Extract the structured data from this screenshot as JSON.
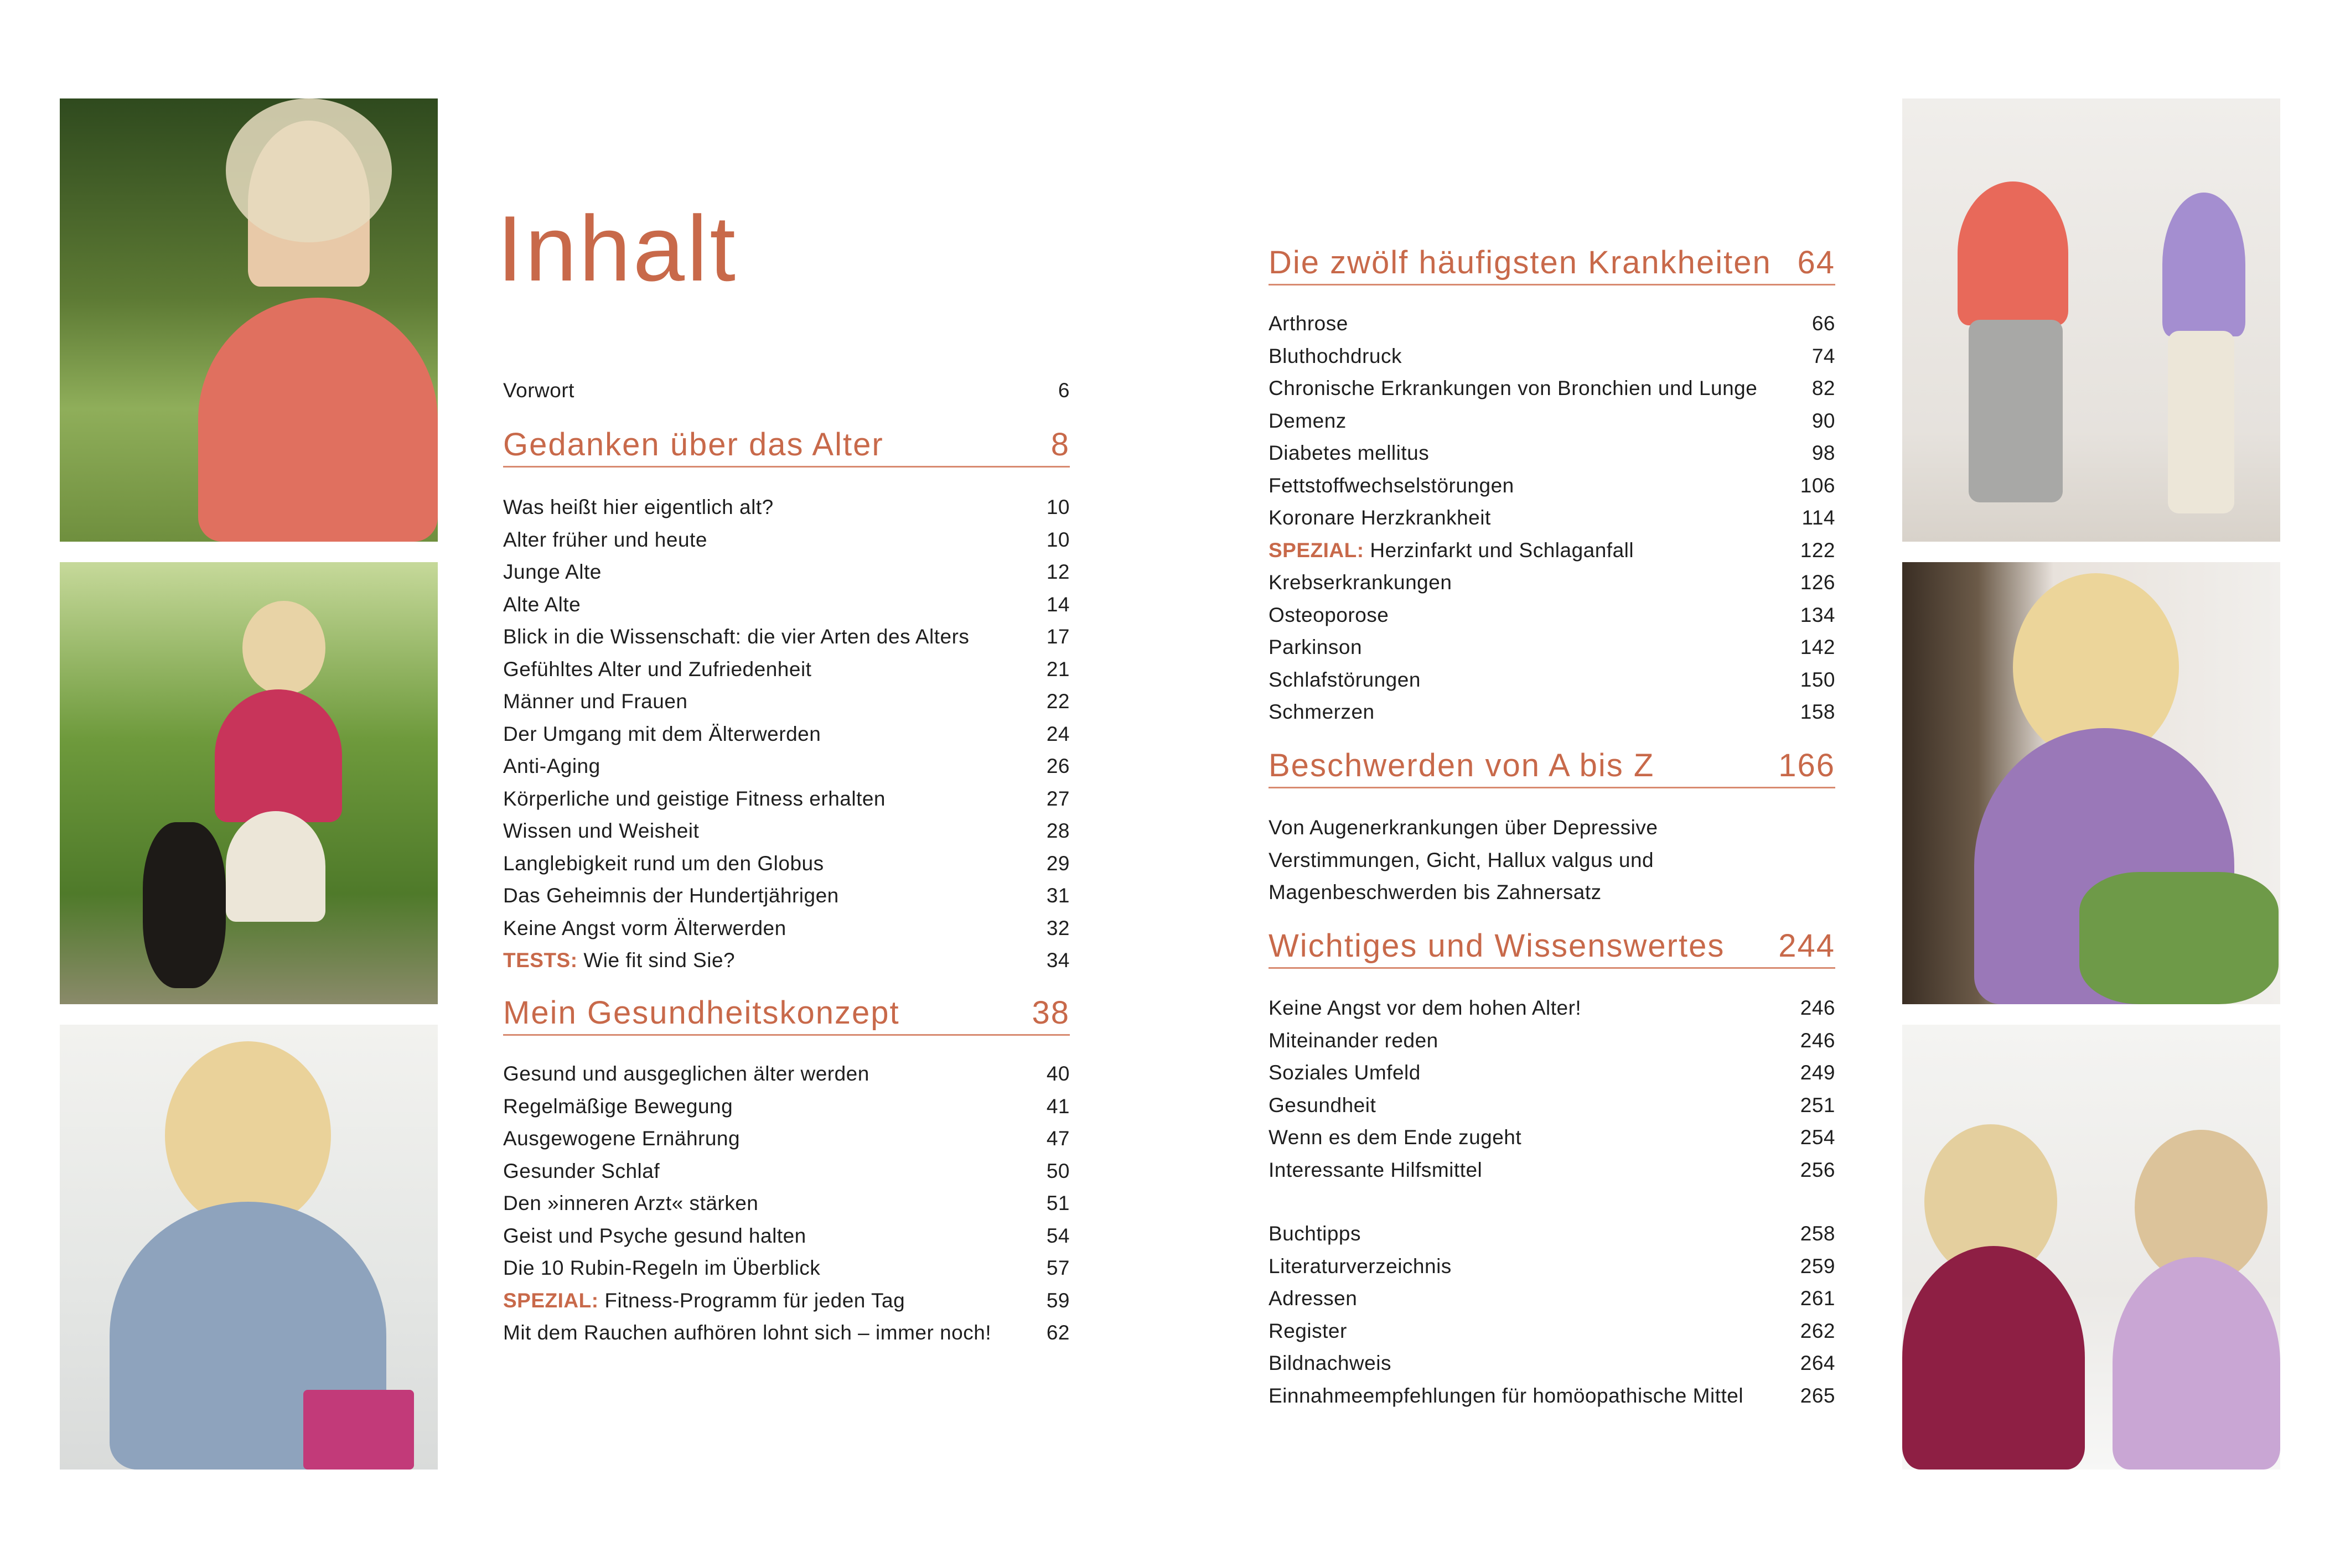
{
  "title": "Inhalt",
  "accent_color": "#c8694a",
  "photos": {
    "left": [
      "woman-profile-outdoors",
      "woman-walking-dog",
      "woman-at-desk"
    ],
    "right": [
      "women-measuring-height",
      "woman-with-lavender",
      "women-writing-at-table"
    ]
  },
  "left_column": {
    "vorwort": {
      "label": "Vorwort",
      "page": "6"
    },
    "sections": [
      {
        "title": "Gedanken über das Alter",
        "page": "8",
        "items": [
          {
            "label": "Was heißt hier eigentlich alt?",
            "page": "10"
          },
          {
            "label": "Alter früher und heute",
            "page": "10"
          },
          {
            "label": "Junge Alte",
            "page": "12"
          },
          {
            "label": "Alte Alte",
            "page": "14"
          },
          {
            "label": "Blick in die Wissenschaft: die vier Arten des Alters",
            "page": "17"
          },
          {
            "label": "Gefühltes Alter und Zufriedenheit",
            "page": "21"
          },
          {
            "label": "Männer und Frauen",
            "page": "22"
          },
          {
            "label": "Der Umgang mit dem Älterwerden",
            "page": "24"
          },
          {
            "label": "Anti-Aging",
            "page": "26"
          },
          {
            "label": "Körperliche und geistige Fitness erhalten",
            "page": "27"
          },
          {
            "label": "Wissen und Weisheit",
            "page": "28"
          },
          {
            "label": "Langlebigkeit rund um den Globus",
            "page": "29"
          },
          {
            "label": "Das Geheimnis der Hundertjährigen",
            "page": "31"
          },
          {
            "label": "Keine Angst vorm Älterwerden",
            "page": "32"
          },
          {
            "prefix": "TESTS:",
            "label": " Wie fit sind Sie?",
            "page": "34"
          }
        ]
      },
      {
        "title": "Mein Gesundheitskonzept",
        "page": "38",
        "items": [
          {
            "label": "Gesund und ausgeglichen älter werden",
            "page": "40"
          },
          {
            "label": "Regelmäßige Bewegung",
            "page": "41"
          },
          {
            "label": "Ausgewogene Ernährung",
            "page": "47"
          },
          {
            "label": "Gesunder Schlaf",
            "page": "50"
          },
          {
            "label": "Den »inneren Arzt« stärken",
            "page": "51"
          },
          {
            "label": "Geist und Psyche gesund halten",
            "page": "54"
          },
          {
            "label": "Die 10 Rubin-Regeln im Überblick",
            "page": "57"
          },
          {
            "prefix": "SPEZIAL:",
            "label": " Fitness-Programm für jeden Tag",
            "page": "59"
          },
          {
            "label": "Mit dem Rauchen aufhören lohnt sich – immer noch!",
            "page": "62"
          }
        ]
      }
    ]
  },
  "right_column": {
    "sections": [
      {
        "title": "Die zwölf häufigsten Krankheiten",
        "page": "64",
        "items": [
          {
            "label": "Arthrose",
            "page": "66"
          },
          {
            "label": "Bluthochdruck",
            "page": "74"
          },
          {
            "label": "Chronische Erkrankungen von Bronchien und Lunge",
            "page": "82"
          },
          {
            "label": "Demenz",
            "page": "90"
          },
          {
            "label": "Diabetes mellitus",
            "page": "98"
          },
          {
            "label": "Fettstoffwechselstörungen",
            "page": "106"
          },
          {
            "label": "Koronare Herzkrankheit",
            "page": "114"
          },
          {
            "prefix": "SPEZIAL:",
            "label": " Herzinfarkt und Schlaganfall",
            "page": "122"
          },
          {
            "label": "Krebserkrankungen",
            "page": "126"
          },
          {
            "label": "Osteoporose",
            "page": "134"
          },
          {
            "label": "Parkinson",
            "page": "142"
          },
          {
            "label": "Schlafstörungen",
            "page": "150"
          },
          {
            "label": "Schmerzen",
            "page": "158"
          }
        ]
      },
      {
        "title": "Beschwerden von A bis Z",
        "page": "166",
        "description": [
          "Von Augenerkrankungen über Depressive",
          "Verstimmungen, Gicht, Hallux valgus und",
          "Magenbeschwerden bis Zahnersatz"
        ]
      },
      {
        "title": "Wichtiges und Wissenswertes",
        "page": "244",
        "items": [
          {
            "label": "Keine Angst vor dem hohen Alter!",
            "page": "246"
          },
          {
            "label": "Miteinander reden",
            "page": "246"
          },
          {
            "label": "Soziales Umfeld",
            "page": "249"
          },
          {
            "label": "Gesundheit",
            "page": "251"
          },
          {
            "label": "Wenn es dem Ende zugeht",
            "page": "254"
          },
          {
            "label": "Interessante Hilfsmittel",
            "page": "256"
          }
        ]
      }
    ],
    "appendix": [
      {
        "label": "Buchtipps",
        "page": "258"
      },
      {
        "label": "Literaturverzeichnis",
        "page": "259"
      },
      {
        "label": "Adressen",
        "page": "261"
      },
      {
        "label": "Register",
        "page": "262"
      },
      {
        "label": "Bildnachweis",
        "page": "264"
      },
      {
        "label": "Einnahmeempfehlungen für homöopathische Mittel",
        "page": "265"
      }
    ]
  }
}
